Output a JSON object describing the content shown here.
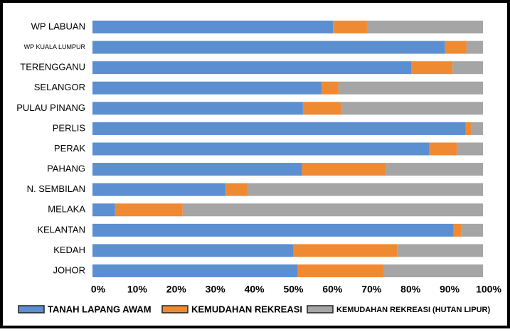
{
  "chart_data": {
    "type": "stacked-bar-horizontal",
    "categories": [
      "WP LABUAN",
      "WP KUALA LUMPUR",
      "TERENGGANU",
      "SELANGOR",
      "PULAU PINANG",
      "PERLIS",
      "PERAK",
      "PAHANG",
      "N. SEMBILAN",
      "MELAKA",
      "KELANTAN",
      "KEDAH",
      "JOHOR"
    ],
    "series": [
      {
        "name": "TANAH LAPANG AWAM",
        "color": "#5b8fd1",
        "values": [
          61.6,
          90.3,
          81.6,
          58.7,
          53.9,
          95.6,
          86.3,
          53.7,
          34.1,
          5.8,
          92.5,
          51.5,
          52.6
        ]
      },
      {
        "name": "KEMUDAHAN REKREASI",
        "color": "#f08a32",
        "values": [
          8.7,
          5.5,
          10.6,
          4.3,
          10.0,
          1.3,
          7.1,
          21.5,
          5.6,
          17.3,
          2.0,
          26.6,
          21.9
        ]
      },
      {
        "name": "KEMUDAHAN REKREASI (HUTAN LIPUR)",
        "color": "#a5a5a5",
        "values": [
          29.7,
          4.2,
          7.8,
          37.0,
          36.1,
          3.1,
          6.6,
          24.8,
          60.3,
          76.9,
          5.5,
          21.9,
          25.5
        ]
      }
    ],
    "xlim": [
      0,
      100
    ],
    "xticks": [
      {
        "value": 0,
        "label": "0%"
      },
      {
        "value": 10,
        "label": "10%"
      },
      {
        "value": 20,
        "label": "20%"
      },
      {
        "value": 30,
        "label": "30%"
      },
      {
        "value": 40,
        "label": "40%"
      },
      {
        "value": 50,
        "label": "50%"
      },
      {
        "value": 60,
        "label": "60%"
      },
      {
        "value": 70,
        "label": "70%"
      },
      {
        "value": 80,
        "label": "80%"
      },
      {
        "value": 90,
        "label": "90%"
      },
      {
        "value": 100,
        "label": "100%"
      }
    ],
    "legend": "bottom"
  }
}
